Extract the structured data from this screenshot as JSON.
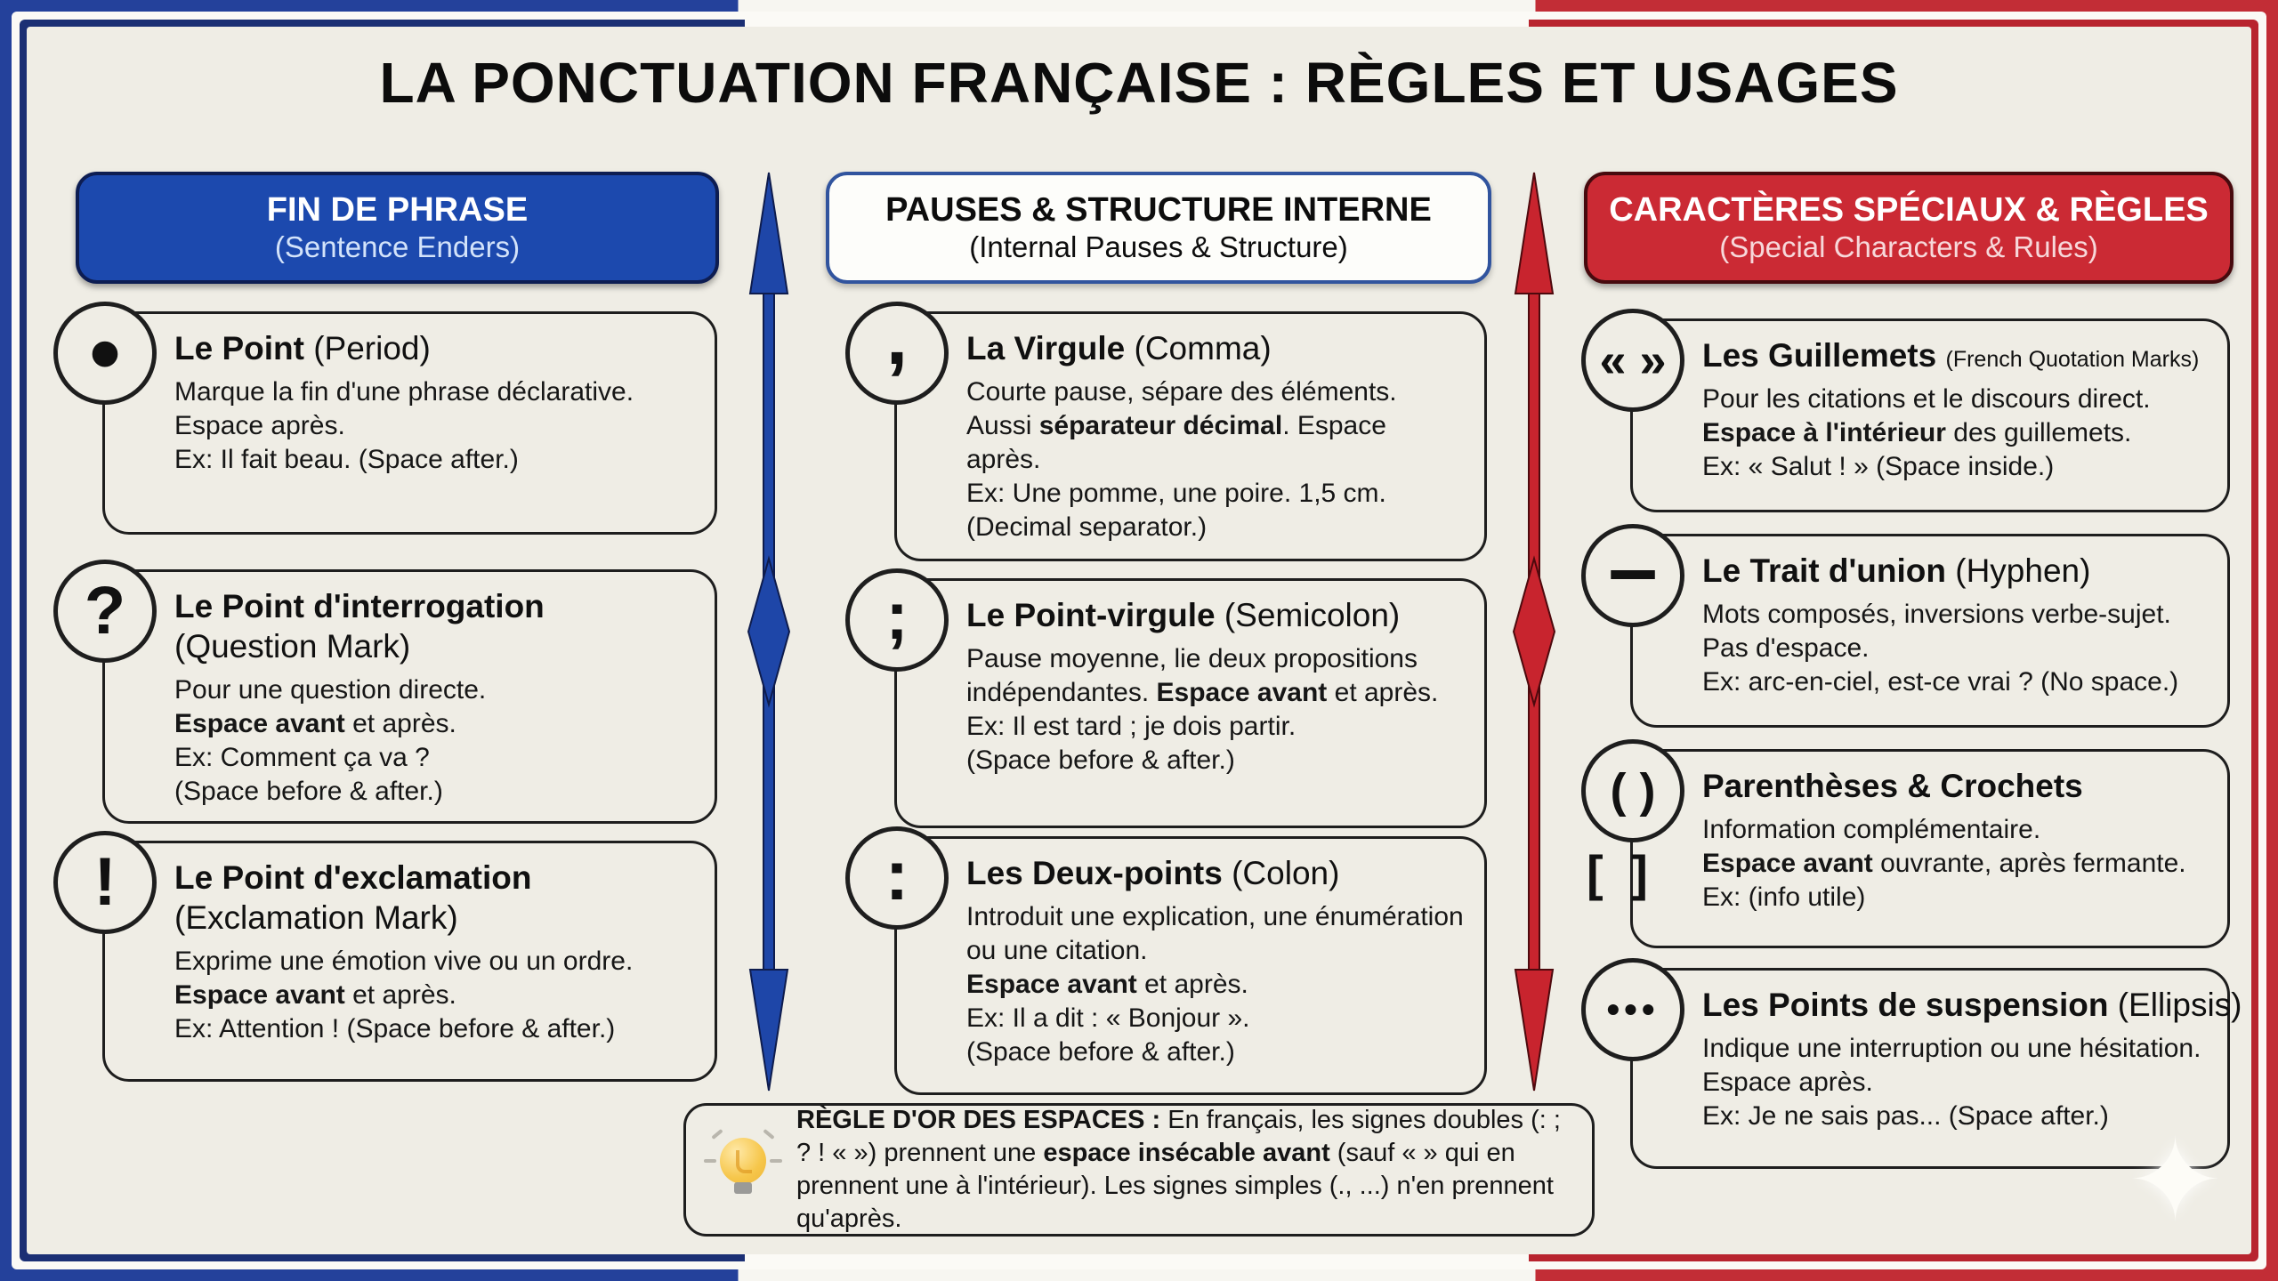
{
  "title": "LA PONCTUATION FRANÇAISE : RÈGLES ET USAGES",
  "colors": {
    "blue": "#1c49ae",
    "navy": "#0d1d52",
    "red": "#cb2a34",
    "dark_red": "#470a0e",
    "cream": "#efede5",
    "card_border": "#1e1e1e",
    "arrow_blue": "#1e46a8",
    "arrow_red": "#c8242e"
  },
  "columns": [
    {
      "id": "fin-de-phrase",
      "style": "blue",
      "header": {
        "title": "FIN DE PHRASE",
        "subtitle": "(Sentence Enders)"
      },
      "cards": [
        {
          "id": "period",
          "symbol": "•",
          "name": "Le Point",
          "en": "(Period)",
          "paragraphs": [
            [
              {
                "t": "Marque la fin d'une phrase déclarative."
              }
            ],
            [
              {
                "t": "Espace après."
              }
            ],
            [
              {
                "t": "Ex: Il fait beau. (Space after.)"
              }
            ]
          ]
        },
        {
          "id": "question-mark",
          "symbol": "?",
          "name": "Le Point d'interrogation",
          "en": "(Question Mark)",
          "paragraphs": [
            [
              {
                "t": "Pour une question directe."
              }
            ],
            [
              {
                "t": "Espace avant",
                "b": true
              },
              {
                "t": " et après."
              }
            ],
            [
              {
                "t": "Ex: Comment ça va ?"
              }
            ],
            [
              {
                "t": "(Space before & after.)"
              }
            ]
          ]
        },
        {
          "id": "exclamation-mark",
          "symbol": "!",
          "name": "Le Point d'exclamation",
          "en": "(Exclamation Mark)",
          "paragraphs": [
            [
              {
                "t": "Exprime une émotion vive ou un ordre."
              }
            ],
            [
              {
                "t": "Espace avant",
                "b": true
              },
              {
                "t": " et après."
              }
            ],
            [
              {
                "t": "Ex: Attention ! (Space before & after.)"
              }
            ]
          ]
        }
      ]
    },
    {
      "id": "pauses-structure",
      "style": "white",
      "header": {
        "title": "PAUSES & STRUCTURE INTERNE",
        "subtitle": "(Internal Pauses & Structure)"
      },
      "cards": [
        {
          "id": "comma",
          "symbol": ",",
          "name": "La Virgule",
          "en": "(Comma)",
          "paragraphs": [
            [
              {
                "t": "Courte pause, sépare des éléments."
              }
            ],
            [
              {
                "t": "Aussi "
              },
              {
                "t": "séparateur décimal",
                "b": true
              },
              {
                "t": ". Espace après."
              }
            ],
            [
              {
                "t": "Ex: Une pomme, une poire. 1,5 cm."
              }
            ],
            [
              {
                "t": "(Decimal separator.)"
              }
            ]
          ]
        },
        {
          "id": "semicolon",
          "symbol": ";",
          "name": "Le Point-virgule",
          "en": "(Semicolon)",
          "paragraphs": [
            [
              {
                "t": "Pause moyenne, lie deux propositions indépendantes. "
              },
              {
                "t": "Espace avant",
                "b": true
              },
              {
                "t": " et après."
              }
            ],
            [
              {
                "t": "Ex: Il est tard ; je dois partir."
              }
            ],
            [
              {
                "t": "(Space before & after.)"
              }
            ]
          ]
        },
        {
          "id": "colon",
          "symbol": ":",
          "name": "Les Deux-points",
          "en": "(Colon)",
          "paragraphs": [
            [
              {
                "t": "Introduit une explication, une énumération ou une citation."
              }
            ],
            [
              {
                "t": "Espace avant",
                "b": true
              },
              {
                "t": " et après."
              }
            ],
            [
              {
                "t": "Ex: Il a dit : « Bonjour »."
              }
            ],
            [
              {
                "t": "(Space before & after.)"
              }
            ]
          ]
        }
      ]
    },
    {
      "id": "caracteres-speciaux",
      "style": "red",
      "header": {
        "title": "CARACTÈRES SPÉCIAUX & RÈGLES",
        "subtitle": "(Special Characters & Rules)"
      },
      "cards": [
        {
          "id": "guillemets",
          "symbol": "« »",
          "name": "Les Guillemets",
          "en": "(French Quotation Marks)",
          "en_small": true,
          "paragraphs": [
            [
              {
                "t": "Pour les citations et le discours direct."
              }
            ],
            [
              {
                "t": "Espace à l'intérieur",
                "b": true
              },
              {
                "t": " des guillemets."
              }
            ],
            [
              {
                "t": "Ex: « Salut ! » (Space inside.)"
              }
            ]
          ]
        },
        {
          "id": "hyphen",
          "symbol": "–",
          "name": "Le Trait d'union",
          "en": "(Hyphen)",
          "paragraphs": [
            [
              {
                "t": "Mots composés, inversions verbe-sujet."
              }
            ],
            [
              {
                "t": "Pas d'espace."
              }
            ],
            [
              {
                "t": "Ex: arc-en-ciel, est-ce vrai ? (No space.)"
              }
            ]
          ]
        },
        {
          "id": "parentheses-brackets",
          "symbol": "( )",
          "symbol2": "[ ]",
          "name": "Parenthèses & Crochets",
          "en": "",
          "paragraphs": [
            [
              {
                "t": "Information complémentaire."
              }
            ],
            [
              {
                "t": "Espace avant",
                "b": true
              },
              {
                "t": " ouvrante, après fermante."
              }
            ],
            [
              {
                "t": "Ex: (info utile)"
              }
            ]
          ]
        },
        {
          "id": "ellipsis",
          "symbol": "•••",
          "name": "Les Points de suspension",
          "en": "(Ellipsis)",
          "paragraphs": [
            [
              {
                "t": "Indique une interruption ou une hésitation. Espace après."
              }
            ],
            [
              {
                "t": "Ex: Je ne sais pas... (Space after.)"
              }
            ]
          ]
        }
      ]
    }
  ],
  "golden_rule": {
    "segments": [
      {
        "t": "RÈGLE D'OR DES ESPACES : ",
        "b": true
      },
      {
        "t": "En français, les signes doubles (: ; ? ! « ») prennent une "
      },
      {
        "t": "espace insécable avant",
        "b": true
      },
      {
        "t": " (sauf « » qui en prennent une à l'intérieur). Les signes simples (., ...) n'en prennent qu'après."
      }
    ]
  },
  "decorations": {
    "sparkle_glyph": "✦"
  }
}
